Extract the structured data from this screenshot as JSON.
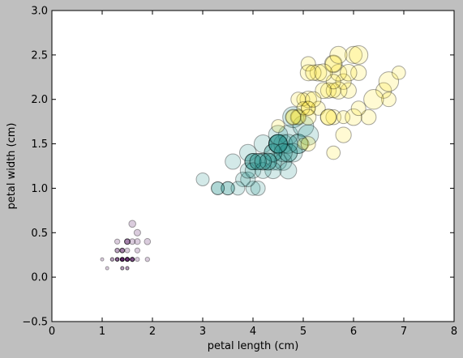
{
  "chart_data": {
    "type": "scatter",
    "xlabel": "petal length (cm)",
    "ylabel": "petal width (cm)",
    "xlim": [
      0,
      8
    ],
    "ylim": [
      -0.5,
      3.0
    ],
    "xticks": [
      "0",
      "1",
      "2",
      "3",
      "4",
      "5",
      "6",
      "7",
      "8"
    ],
    "yticks": [
      "−0.5",
      "0.0",
      "0.5",
      "1.0",
      "1.5",
      "2.0",
      "2.5",
      "3.0"
    ],
    "grid": false,
    "point_alpha": 0.2,
    "size_encoding": "sepal width",
    "color_encoding": "species",
    "colors": {
      "setosa": "#440154",
      "versicolor": "#21918c",
      "virginica": "#fde725"
    },
    "series": [
      {
        "color_key": "setosa",
        "points": [
          [
            1.4,
            0.2
          ],
          [
            1.4,
            0.2
          ],
          [
            1.3,
            0.2
          ],
          [
            1.5,
            0.2
          ],
          [
            1.4,
            0.2
          ],
          [
            1.7,
            0.4
          ],
          [
            1.4,
            0.3
          ],
          [
            1.5,
            0.2
          ],
          [
            1.4,
            0.2
          ],
          [
            1.5,
            0.1
          ],
          [
            1.5,
            0.2
          ],
          [
            1.6,
            0.2
          ],
          [
            1.4,
            0.1
          ],
          [
            1.1,
            0.1
          ],
          [
            1.2,
            0.2
          ],
          [
            1.5,
            0.4
          ],
          [
            1.3,
            0.4
          ],
          [
            1.4,
            0.3
          ],
          [
            1.7,
            0.3
          ],
          [
            1.5,
            0.3
          ],
          [
            1.7,
            0.2
          ],
          [
            1.5,
            0.4
          ],
          [
            1.0,
            0.2
          ],
          [
            1.7,
            0.5
          ],
          [
            1.9,
            0.2
          ],
          [
            1.6,
            0.2
          ],
          [
            1.6,
            0.4
          ],
          [
            1.5,
            0.2
          ],
          [
            1.4,
            0.2
          ],
          [
            1.6,
            0.2
          ],
          [
            1.6,
            0.2
          ],
          [
            1.5,
            0.4
          ],
          [
            1.5,
            0.1
          ],
          [
            1.4,
            0.2
          ],
          [
            1.5,
            0.2
          ],
          [
            1.2,
            0.2
          ],
          [
            1.3,
            0.2
          ],
          [
            1.4,
            0.1
          ],
          [
            1.3,
            0.2
          ],
          [
            1.5,
            0.2
          ],
          [
            1.3,
            0.3
          ],
          [
            1.3,
            0.3
          ],
          [
            1.3,
            0.2
          ],
          [
            1.6,
            0.6
          ],
          [
            1.9,
            0.4
          ],
          [
            1.4,
            0.3
          ],
          [
            1.6,
            0.2
          ],
          [
            1.4,
            0.2
          ],
          [
            1.5,
            0.2
          ],
          [
            1.4,
            0.2
          ]
        ]
      },
      {
        "color_key": "versicolor",
        "points": [
          [
            4.7,
            1.4
          ],
          [
            4.5,
            1.5
          ],
          [
            4.9,
            1.5
          ],
          [
            4.0,
            1.3
          ],
          [
            4.6,
            1.5
          ],
          [
            4.5,
            1.3
          ],
          [
            4.7,
            1.6
          ],
          [
            3.3,
            1.0
          ],
          [
            4.6,
            1.3
          ],
          [
            3.9,
            1.4
          ],
          [
            3.5,
            1.0
          ],
          [
            4.2,
            1.5
          ],
          [
            4.0,
            1.0
          ],
          [
            4.7,
            1.4
          ],
          [
            3.6,
            1.3
          ],
          [
            4.4,
            1.4
          ],
          [
            4.5,
            1.5
          ],
          [
            4.1,
            1.0
          ],
          [
            4.5,
            1.5
          ],
          [
            3.9,
            1.1
          ],
          [
            4.8,
            1.8
          ],
          [
            4.0,
            1.3
          ],
          [
            4.9,
            1.5
          ],
          [
            4.7,
            1.2
          ],
          [
            4.3,
            1.3
          ],
          [
            4.4,
            1.4
          ],
          [
            4.8,
            1.4
          ],
          [
            5.0,
            1.7
          ],
          [
            4.5,
            1.5
          ],
          [
            3.5,
            1.0
          ],
          [
            3.8,
            1.1
          ],
          [
            3.7,
            1.0
          ],
          [
            3.9,
            1.2
          ],
          [
            5.1,
            1.6
          ],
          [
            4.5,
            1.5
          ],
          [
            4.5,
            1.6
          ],
          [
            4.7,
            1.5
          ],
          [
            4.4,
            1.3
          ],
          [
            4.1,
            1.3
          ],
          [
            4.0,
            1.3
          ],
          [
            4.4,
            1.2
          ],
          [
            4.6,
            1.4
          ],
          [
            4.0,
            1.2
          ],
          [
            3.3,
            1.0
          ],
          [
            4.2,
            1.3
          ],
          [
            4.2,
            1.2
          ],
          [
            4.2,
            1.3
          ],
          [
            4.3,
            1.3
          ],
          [
            3.0,
            1.1
          ],
          [
            4.1,
            1.3
          ]
        ]
      },
      {
        "color_key": "virginica",
        "points": [
          [
            6.0,
            2.5
          ],
          [
            5.1,
            1.9
          ],
          [
            5.9,
            2.1
          ],
          [
            5.6,
            1.8
          ],
          [
            5.8,
            2.2
          ],
          [
            6.6,
            2.1
          ],
          [
            4.5,
            1.7
          ],
          [
            6.3,
            1.8
          ],
          [
            5.8,
            1.8
          ],
          [
            6.1,
            2.5
          ],
          [
            5.1,
            2.0
          ],
          [
            5.3,
            1.9
          ],
          [
            5.5,
            2.1
          ],
          [
            5.0,
            2.0
          ],
          [
            5.1,
            2.4
          ],
          [
            5.3,
            2.3
          ],
          [
            5.5,
            1.8
          ],
          [
            6.7,
            2.2
          ],
          [
            6.9,
            2.3
          ],
          [
            5.0,
            1.5
          ],
          [
            5.7,
            2.3
          ],
          [
            4.9,
            2.0
          ],
          [
            6.7,
            2.0
          ],
          [
            4.9,
            1.8
          ],
          [
            5.7,
            2.1
          ],
          [
            6.0,
            1.8
          ],
          [
            4.8,
            1.8
          ],
          [
            4.9,
            1.8
          ],
          [
            5.6,
            2.1
          ],
          [
            5.8,
            1.6
          ],
          [
            6.1,
            1.9
          ],
          [
            6.4,
            2.0
          ],
          [
            5.6,
            2.2
          ],
          [
            5.1,
            1.5
          ],
          [
            5.6,
            1.4
          ],
          [
            6.1,
            2.3
          ],
          [
            5.6,
            2.4
          ],
          [
            5.5,
            1.8
          ],
          [
            4.8,
            1.8
          ],
          [
            5.4,
            2.1
          ],
          [
            5.6,
            2.4
          ],
          [
            5.1,
            2.3
          ],
          [
            5.1,
            1.9
          ],
          [
            5.9,
            2.3
          ],
          [
            5.7,
            2.5
          ],
          [
            5.2,
            2.3
          ],
          [
            5.0,
            1.9
          ],
          [
            5.2,
            2.0
          ],
          [
            5.4,
            2.3
          ],
          [
            5.1,
            1.8
          ]
        ],
        "sizes_cm": [
          3.3,
          2.7,
          3.0,
          2.9,
          3.0,
          3.0,
          2.5,
          2.9,
          2.5,
          3.6,
          3.2,
          2.7,
          3.0,
          2.5,
          2.8,
          3.2,
          3.0,
          3.8,
          2.6,
          2.2,
          3.2,
          2.8,
          2.8,
          2.7,
          3.3,
          3.2,
          2.8,
          3.0,
          2.8,
          3.0,
          2.8,
          3.8,
          2.8,
          2.8,
          2.6,
          3.0,
          3.4,
          3.1,
          3.0,
          3.1,
          3.1,
          3.1,
          2.7,
          3.2,
          3.3,
          3.0,
          2.5,
          3.0,
          3.4,
          3.0
        ]
      }
    ]
  }
}
